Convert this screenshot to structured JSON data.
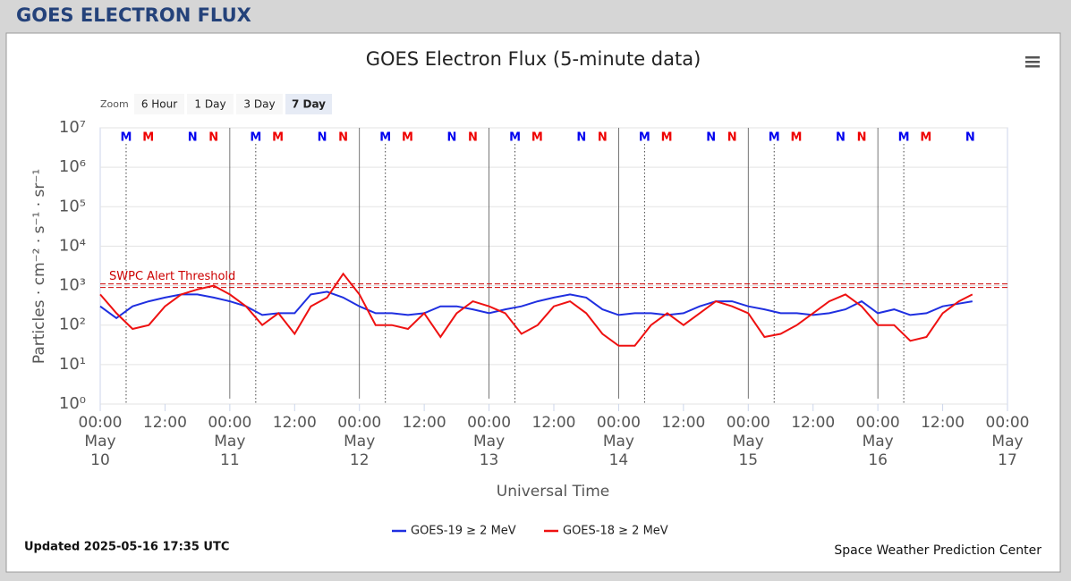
{
  "header": {
    "title": "GOES ELECTRON FLUX"
  },
  "zoom": {
    "label": "Zoom",
    "buttons": [
      "6 Hour",
      "1 Day",
      "3 Day",
      "7 Day"
    ],
    "selected": 3
  },
  "chart_data": {
    "type": "line",
    "title": "GOES Electron Flux (5-minute data)",
    "xlabel": "Universal Time",
    "ylabel": "Particles · cm⁻² · s⁻¹ · sr⁻¹",
    "log_y": true,
    "grid": true,
    "legend": "bottom",
    "xlim": [
      0,
      168
    ],
    "xticks": [
      {
        "value": 0,
        "label": "00:00\nMay\n10"
      },
      {
        "value": 12,
        "label": "12:00"
      },
      {
        "value": 24,
        "label": "00:00\nMay\n11"
      },
      {
        "value": 36,
        "label": "12:00"
      },
      {
        "value": 48,
        "label": "00:00\nMay\n12"
      },
      {
        "value": 60,
        "label": "12:00"
      },
      {
        "value": 72,
        "label": "00:00\nMay\n13"
      },
      {
        "value": 84,
        "label": "12:00"
      },
      {
        "value": 96,
        "label": "00:00\nMay\n14"
      },
      {
        "value": 108,
        "label": "12:00"
      },
      {
        "value": 120,
        "label": "00:00\nMay\n15"
      },
      {
        "value": 132,
        "label": "12:00"
      },
      {
        "value": 144,
        "label": "00:00\nMay\n16"
      },
      {
        "value": 156,
        "label": "12:00"
      },
      {
        "value": 168,
        "label": "00:00\nMay\n17"
      }
    ],
    "ylim": [
      1,
      10000000
    ],
    "yticks": [
      {
        "value": 1,
        "label": "10⁰"
      },
      {
        "value": 10,
        "label": "10¹"
      },
      {
        "value": 100,
        "label": "10²"
      },
      {
        "value": 1000,
        "label": "10³"
      },
      {
        "value": 10000,
        "label": "10⁴"
      },
      {
        "value": 100000,
        "label": "10⁵"
      },
      {
        "value": 1000000,
        "label": "10⁶"
      },
      {
        "value": 10000000,
        "label": "10⁷"
      }
    ],
    "day_lines": [
      24,
      48,
      72,
      96,
      120,
      144
    ],
    "threshold": {
      "value": 1000,
      "label": "SWPC Alert Threshold",
      "color": "#cc0000"
    },
    "marker_groups": [
      {
        "label": "M",
        "color": "#0000ee",
        "x": [
          4.8,
          28.8,
          52.8,
          76.8,
          100.8,
          124.8,
          148.8
        ]
      },
      {
        "label": "M",
        "color": "#ee0000",
        "x": [
          8.9,
          32.9,
          56.9,
          80.9,
          104.9,
          128.9,
          152.9
        ]
      },
      {
        "label": "N",
        "color": "#0000ee",
        "x": [
          17.1,
          41.1,
          65.1,
          89.1,
          113.1,
          137.1,
          161.1
        ]
      },
      {
        "label": "N",
        "color": "#ee0000",
        "x": [
          21,
          45,
          69,
          93,
          117,
          141
        ]
      }
    ],
    "x": [
      0,
      3,
      6,
      9,
      12,
      15,
      18,
      21,
      24,
      27,
      30,
      33,
      36,
      39,
      42,
      45,
      48,
      51,
      54,
      57,
      60,
      63,
      66,
      69,
      72,
      75,
      78,
      81,
      84,
      87,
      90,
      93,
      96,
      99,
      102,
      105,
      108,
      111,
      114,
      117,
      120,
      123,
      126,
      129,
      132,
      135,
      138,
      141,
      144,
      147,
      150,
      153,
      156,
      159,
      161.5
    ],
    "series": [
      {
        "name": "GOES-19 ≥ 2 MeV",
        "color": "#1f2fe0",
        "values": [
          300,
          150,
          300,
          400,
          500,
          600,
          600,
          500,
          400,
          300,
          180,
          200,
          200,
          600,
          700,
          500,
          300,
          200,
          200,
          180,
          200,
          300,
          300,
          250,
          200,
          250,
          300,
          400,
          500,
          600,
          500,
          250,
          180,
          200,
          200,
          180,
          200,
          300,
          400,
          400,
          300,
          250,
          200,
          200,
          180,
          200,
          250,
          400,
          200,
          250,
          180,
          200,
          300,
          350,
          400
        ]
      },
      {
        "name": "GOES-18 ≥ 2 MeV",
        "color": "#ee1111",
        "values": [
          600,
          200,
          80,
          100,
          300,
          600,
          800,
          1000,
          600,
          300,
          100,
          200,
          60,
          300,
          500,
          2000,
          600,
          100,
          100,
          80,
          200,
          50,
          200,
          400,
          300,
          200,
          60,
          100,
          300,
          400,
          200,
          60,
          30,
          30,
          100,
          200,
          100,
          200,
          400,
          300,
          200,
          50,
          60,
          100,
          200,
          400,
          600,
          300,
          100,
          100,
          40,
          50,
          200,
          400,
          600
        ]
      }
    ]
  },
  "footer": {
    "updated": "Updated 2025-05-16 17:35 UTC",
    "credit": "Space Weather Prediction Center"
  }
}
